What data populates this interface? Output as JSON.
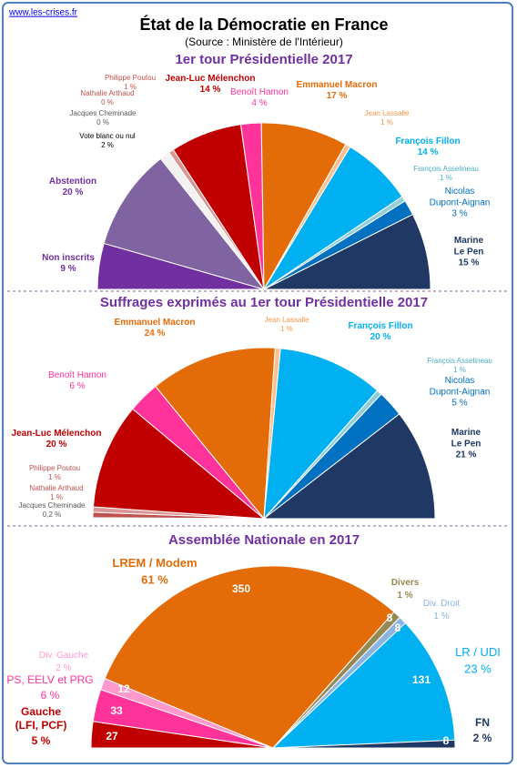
{
  "header": {
    "site": "www.les-crises.fr",
    "title": "État de la Démocratie en France",
    "source": "(Source : Ministère de l'Intérieur)"
  },
  "chart_data": [
    {
      "type": "pie",
      "half": true,
      "title": "1er tour Présidentielle 2017",
      "categories": [
        "Non inscrits",
        "Abstention",
        "Vote blanc ou nul",
        "Jacques Cheminade",
        "Nathalie Arthaud",
        "Philippe Poutou",
        "Jean-Luc Mélenchon",
        "Benoît Hamon",
        "Emmanuel Macron",
        "Jean Lassalle",
        "François Fillon",
        "François Asselineau",
        "Nicolas\nDupont-Aignan",
        "Marine\nLe Pen"
      ],
      "values": [
        9,
        20,
        2,
        0,
        0,
        1,
        14,
        4,
        17,
        1,
        14,
        1,
        3,
        15
      ],
      "value_labels": [
        "9 %",
        "20 %",
        "2 %",
        "0 %",
        "0 %",
        "1 %",
        "14 %",
        "4 %",
        "17 %",
        "1 %",
        "14 %",
        "1 %",
        "3 %",
        "15 %"
      ],
      "colors": [
        "#7030a0",
        "#8064a2",
        "#f2f2f2",
        "#7f7f7f",
        "#c0504d",
        "#d99694",
        "#c00000",
        "#ff3399",
        "#e36c09",
        "#fac090",
        "#00b0f0",
        "#92cddc",
        "#0070c0",
        "#1f3864"
      ]
    },
    {
      "type": "pie",
      "half": true,
      "title": "Suffrages exprimés au 1er tour Présidentielle 2017",
      "categories": [
        "Jacques Cheminade",
        "Nathalie Arthaud",
        "Philippe Poutou",
        "Jean-Luc Mélenchon",
        "Benoît Hamon",
        "Emmanuel Macron",
        "Jean Lassalle",
        "François Fillon",
        "François Asselineau",
        "Nicolas\nDupont-Aignan",
        "Marine\nLe Pen"
      ],
      "values": [
        0.2,
        1,
        1,
        20,
        6,
        24,
        1,
        20,
        1,
        5,
        21
      ],
      "value_labels": [
        "0,2 %",
        "1 %",
        "1 %",
        "20 %",
        "6 %",
        "24 %",
        "1 %",
        "20 %",
        "1 %",
        "5 %",
        "21 %"
      ],
      "colors": [
        "#7f7f7f",
        "#c0504d",
        "#d99694",
        "#c00000",
        "#ff3399",
        "#e36c09",
        "#fac090",
        "#00b0f0",
        "#92cddc",
        "#0070c0",
        "#1f3864"
      ]
    },
    {
      "type": "pie",
      "half": true,
      "title": "Assemblée Nationale en 2017",
      "categories": [
        "Gauche\n(LFI, PCF)",
        "PS, EELV et PRG",
        "Div. Gauche",
        "LREM / Modem",
        "Divers",
        "Div. Droit",
        "LR / UDI",
        "FN"
      ],
      "values": [
        27,
        33,
        12,
        350,
        8,
        8,
        131,
        8
      ],
      "shares": [
        5,
        6,
        2,
        61,
        1,
        1,
        23,
        2
      ],
      "share_labels": [
        "5 %",
        "6 %",
        "2 %",
        "61 %",
        "1 %",
        "1 %",
        "23 %",
        "2 %"
      ],
      "colors": [
        "#c00000",
        "#ff3399",
        "#ff99cc",
        "#e36c09",
        "#948a54",
        "#8db3e2",
        "#00b0f0",
        "#1f3864"
      ]
    }
  ]
}
